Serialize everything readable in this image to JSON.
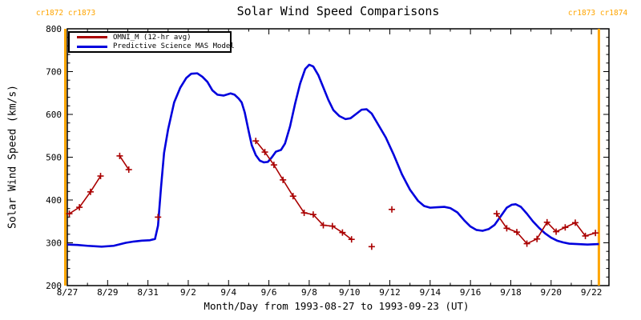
{
  "cr_labels": {
    "top_left": "cr1872 cr1873",
    "top_right": "cr1873 cr1874"
  },
  "colors": {
    "omni": "#aa0000",
    "model": "#0000dd",
    "cr_line": "#ffa500",
    "axis": "#000000",
    "background": "#ffffff"
  },
  "chart_data": {
    "type": "line",
    "title": "Solar Wind Speed Comparisons",
    "xlabel": "Month/Day from 1993-08-27 to 1993-09-23 (UT)",
    "ylabel": "Solar Wind Speed (km/s)",
    "x_unit": "days since 1993-08-27 00:00 UT",
    "xlim": [
      0,
      26.87
    ],
    "ylim": [
      200,
      800
    ],
    "grid": false,
    "legend_position": "top-left-inside",
    "x_tick_days": [
      0,
      2,
      4,
      6,
      8,
      10,
      12,
      14,
      16,
      18,
      20,
      22,
      24,
      26
    ],
    "x_tick_labels": [
      "8/27",
      "8/29",
      "8/31",
      "9/2",
      "9/4",
      "9/6",
      "9/8",
      "9/10",
      "9/12",
      "9/14",
      "9/16",
      "9/18",
      "9/20",
      "9/22"
    ],
    "x_minor_step_days": 1,
    "y_ticks": [
      200,
      300,
      400,
      500,
      600,
      700,
      800
    ],
    "y_minor_step": 20,
    "cr_boundary_days": [
      -0.1,
      26.37
    ],
    "series": [
      {
        "name": "OMNI_M (12-hr avg)",
        "color": "#aa0000",
        "style": "line",
        "marker": "plus",
        "segments": [
          [
            [
              0.1,
              368
            ],
            [
              0.6,
              383
            ],
            [
              1.15,
              419
            ],
            [
              1.65,
              456
            ]
          ],
          [
            [
              2.6,
              503
            ],
            [
              3.05,
              471
            ]
          ],
          [
            [
              4.5,
              360
            ]
          ],
          [
            [
              9.35,
              538
            ],
            [
              9.8,
              512
            ],
            [
              10.25,
              482
            ],
            [
              10.7,
              447
            ],
            [
              11.2,
              409
            ],
            [
              11.75,
              370
            ],
            [
              12.2,
              366
            ],
            [
              12.7,
              341
            ],
            [
              13.15,
              339
            ],
            [
              13.65,
              324
            ],
            [
              14.1,
              308
            ]
          ],
          [
            [
              15.1,
              291
            ]
          ],
          [
            [
              16.1,
              378
            ]
          ],
          [
            [
              21.3,
              368
            ],
            [
              21.8,
              334
            ],
            [
              22.3,
              325
            ],
            [
              22.8,
              298
            ],
            [
              23.3,
              309
            ],
            [
              23.8,
              348
            ],
            [
              24.25,
              326
            ],
            [
              24.7,
              336
            ],
            [
              25.2,
              347
            ],
            [
              25.7,
              316
            ],
            [
              26.2,
              323
            ]
          ]
        ]
      },
      {
        "name": "Predictive Science MAS Model",
        "color": "#0000dd",
        "style": "line",
        "marker": "none",
        "points": [
          [
            0,
            296
          ],
          [
            0.5,
            295
          ],
          [
            1.0,
            293
          ],
          [
            1.7,
            291
          ],
          [
            2.3,
            293
          ],
          [
            2.9,
            300
          ],
          [
            3.3,
            303
          ],
          [
            3.7,
            305
          ],
          [
            4.1,
            306
          ],
          [
            4.35,
            309
          ],
          [
            4.5,
            340
          ],
          [
            4.65,
            430
          ],
          [
            4.8,
            510
          ],
          [
            5.0,
            565
          ],
          [
            5.3,
            628
          ],
          [
            5.6,
            662
          ],
          [
            5.9,
            685
          ],
          [
            6.15,
            695
          ],
          [
            6.45,
            696
          ],
          [
            6.7,
            688
          ],
          [
            6.95,
            676
          ],
          [
            7.2,
            656
          ],
          [
            7.45,
            646
          ],
          [
            7.75,
            644
          ],
          [
            8.1,
            649
          ],
          [
            8.3,
            646
          ],
          [
            8.5,
            637
          ],
          [
            8.65,
            628
          ],
          [
            8.8,
            605
          ],
          [
            9.0,
            560
          ],
          [
            9.15,
            528
          ],
          [
            9.35,
            505
          ],
          [
            9.55,
            492
          ],
          [
            9.75,
            488
          ],
          [
            9.95,
            489
          ],
          [
            10.15,
            500
          ],
          [
            10.35,
            513
          ],
          [
            10.6,
            517
          ],
          [
            10.8,
            532
          ],
          [
            11.05,
            572
          ],
          [
            11.3,
            625
          ],
          [
            11.55,
            672
          ],
          [
            11.8,
            706
          ],
          [
            12.0,
            716
          ],
          [
            12.2,
            712
          ],
          [
            12.45,
            692
          ],
          [
            12.7,
            663
          ],
          [
            12.95,
            634
          ],
          [
            13.2,
            610
          ],
          [
            13.5,
            596
          ],
          [
            13.8,
            589
          ],
          [
            14.05,
            591
          ],
          [
            14.3,
            600
          ],
          [
            14.6,
            611
          ],
          [
            14.85,
            612
          ],
          [
            15.1,
            602
          ],
          [
            15.4,
            578
          ],
          [
            15.8,
            546
          ],
          [
            16.2,
            505
          ],
          [
            16.6,
            460
          ],
          [
            17.0,
            424
          ],
          [
            17.4,
            398
          ],
          [
            17.7,
            386
          ],
          [
            18.0,
            382
          ],
          [
            18.35,
            383
          ],
          [
            18.7,
            384
          ],
          [
            19.0,
            381
          ],
          [
            19.35,
            371
          ],
          [
            19.7,
            352
          ],
          [
            20.0,
            338
          ],
          [
            20.3,
            330
          ],
          [
            20.6,
            328
          ],
          [
            20.9,
            332
          ],
          [
            21.2,
            342
          ],
          [
            21.5,
            362
          ],
          [
            21.8,
            382
          ],
          [
            22.05,
            389
          ],
          [
            22.25,
            390
          ],
          [
            22.5,
            384
          ],
          [
            22.8,
            368
          ],
          [
            23.1,
            350
          ],
          [
            23.4,
            335
          ],
          [
            23.7,
            322
          ],
          [
            24.0,
            312
          ],
          [
            24.3,
            305
          ],
          [
            24.6,
            301
          ],
          [
            24.9,
            298
          ],
          [
            25.3,
            297
          ],
          [
            25.8,
            296
          ],
          [
            26.37,
            297
          ]
        ]
      }
    ]
  }
}
